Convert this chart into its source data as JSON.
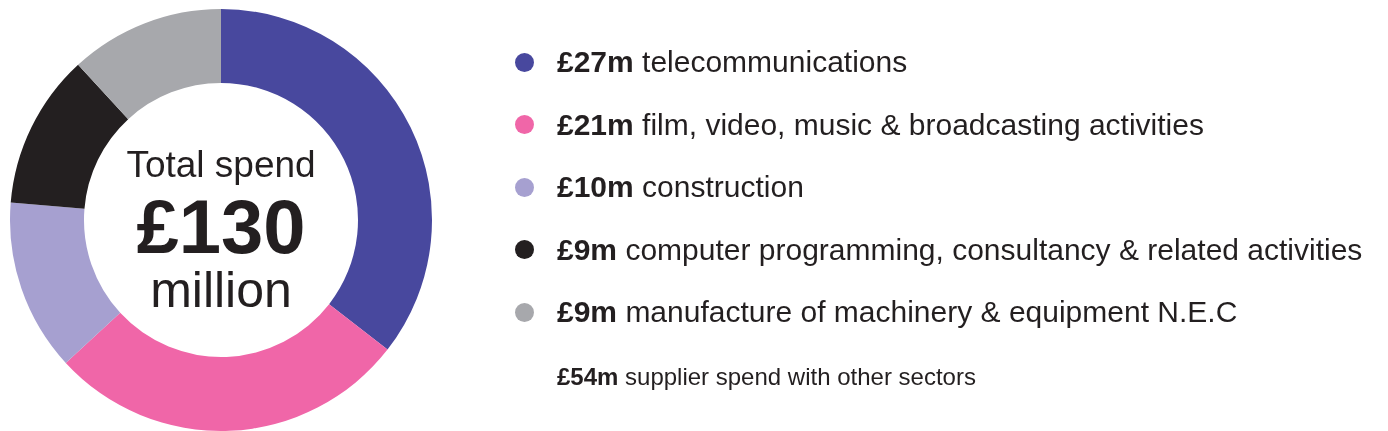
{
  "chart_data": {
    "type": "donut",
    "categories": [
      "£27m telecommunications",
      "£21m film, video, music & broadcasting activities",
      "£10m construction",
      "£9m computer programming, consultancy & related activities",
      "£9m manufacture of machinery & equipment N.E.C"
    ],
    "values": [
      27,
      21,
      10,
      9,
      9
    ],
    "colors": [
      "#48489e",
      "#f066a8",
      "#a6a0d0",
      "#231f20",
      "#a7a8ac"
    ],
    "legend": "right",
    "annotations": [
      "Total spend\n£130\nmillion",
      "£54m supplier spend with other sectors"
    ]
  }
}
